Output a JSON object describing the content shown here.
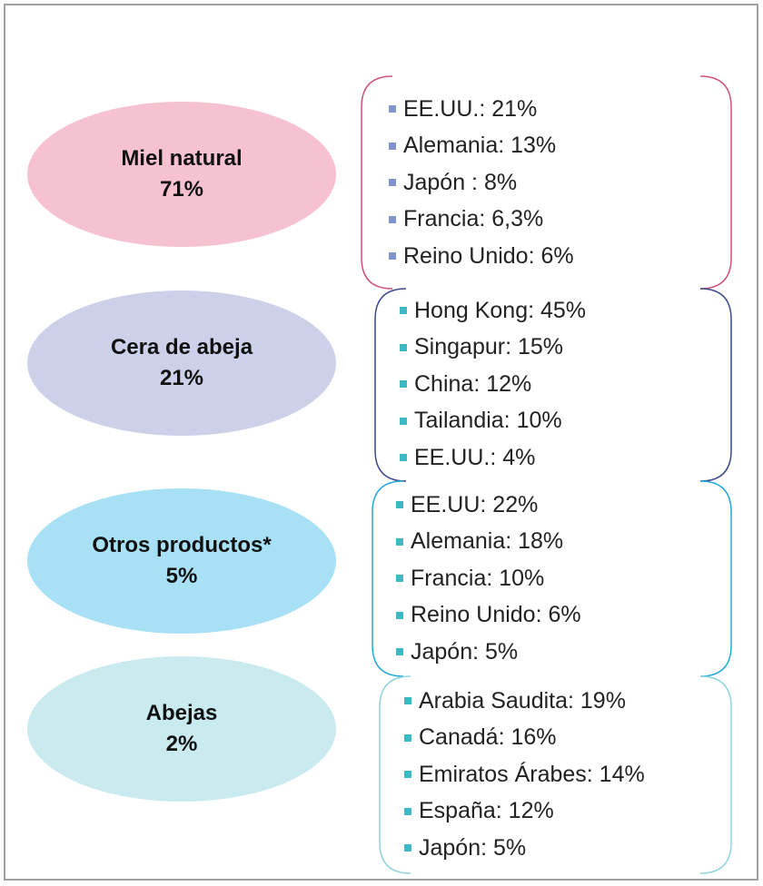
{
  "groups": [
    {
      "name": "Miel natural",
      "share": "71%",
      "items": [
        "EE.UU.: 21%",
        "Alemania: 13%",
        "Japón : 8%",
        "Francia: 6,3%",
        "Reino Unido: 6%"
      ]
    },
    {
      "name": "Cera de abeja",
      "share": "21%",
      "items": [
        "Hong Kong: 45%",
        "Singapur: 15%",
        "China: 12%",
        "Tailandia: 10%",
        "EE.UU.: 4%"
      ]
    },
    {
      "name": "Otros productos*",
      "share": "5%",
      "items": [
        "EE.UU: 22%",
        "Alemania: 18%",
        "Francia: 10%",
        "Reino Unido: 6%",
        "Japón: 5%"
      ]
    },
    {
      "name": "Abejas",
      "share": "2%",
      "items": [
        "Arabia Saudita: 19%",
        "Canadá: 16%",
        "Emiratos Árabes: 14%",
        "España: 12%",
        "Japón: 5%"
      ]
    }
  ]
}
